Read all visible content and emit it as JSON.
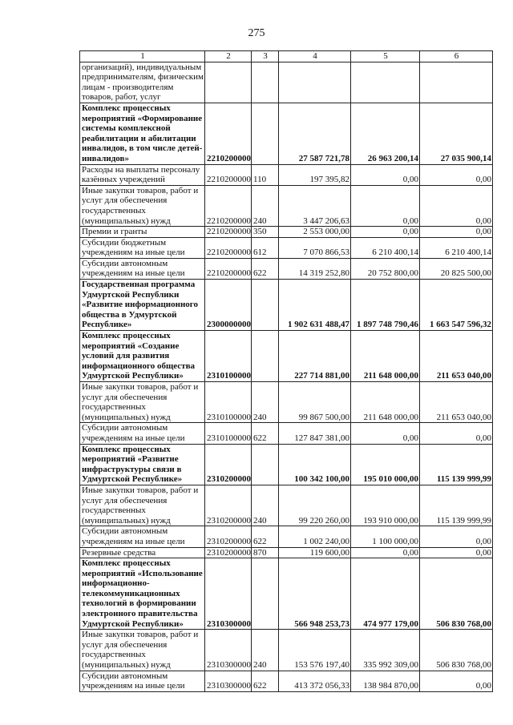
{
  "page_number": "275",
  "header": [
    "1",
    "2",
    "3",
    "4",
    "5",
    "6"
  ],
  "rows": [
    {
      "label": "организаций), индивидуальным\nпредпринимателям, физическим\nлицам - производителям\nтоваров, работ, услуг",
      "bold": false,
      "code": "",
      "type": "",
      "v4": "",
      "v5": "",
      "v6": ""
    },
    {
      "label": "Комплекс процессных\nмероприятий «Формирование\nсистемы комплексной\nреабилитации и абилитации\nинвалидов, в том числе детей-\nинвалидов»",
      "bold": true,
      "code": "2210200000",
      "type": "",
      "v4": "27 587 721,78",
      "v5": "26 963 200,14",
      "v6": "27 035 900,14"
    },
    {
      "label": "Расходы на выплаты персоналу\nказённых учреждений",
      "bold": false,
      "code": "2210200000",
      "type": "110",
      "v4": "197 395,82",
      "v5": "0,00",
      "v6": "0,00"
    },
    {
      "label": "Иные закупки товаров, работ и\nуслуг для обеспечения\nгосударственных\n(муниципальных) нужд",
      "bold": false,
      "code": "2210200000",
      "type": "240",
      "v4": "3 447 206,63",
      "v5": "0,00",
      "v6": "0,00"
    },
    {
      "label": "Премии и гранты",
      "bold": false,
      "code": "2210200000",
      "type": "350",
      "v4": "2 553 000,00",
      "v5": "0,00",
      "v6": "0,00"
    },
    {
      "label": "Субсидии бюджетным\nучреждениям на иные цели",
      "bold": false,
      "code": "2210200000",
      "type": "612",
      "v4": "7 070 866,53",
      "v5": "6 210 400,14",
      "v6": "6 210 400,14"
    },
    {
      "label": "Субсидии автономным\nучреждениям на иные цели",
      "bold": false,
      "code": "2210200000",
      "type": "622",
      "v4": "14 319 252,80",
      "v5": "20 752 800,00",
      "v6": "20 825 500,00"
    },
    {
      "label": "Государственная программа\nУдмуртской Республики\n«Развитие информационного\nобщества в Удмуртской\nРеспублике»",
      "bold": true,
      "code": "2300000000",
      "type": "",
      "v4": "1 902 631 488,47",
      "v5": "1 897 748 790,46",
      "v6": "1 663 547 596,32"
    },
    {
      "label": "Комплекс процессных\nмероприятий «Создание\nусловий для развития\nинформационного общества\nУдмуртской Республики»",
      "bold": true,
      "code": "2310100000",
      "type": "",
      "v4": "227 714 881,00",
      "v5": "211 648 000,00",
      "v6": "211 653 040,00"
    },
    {
      "label": "Иные закупки товаров, работ и\nуслуг для обеспечения\nгосударственных\n(муниципальных) нужд",
      "bold": false,
      "code": "2310100000",
      "type": "240",
      "v4": "99 867 500,00",
      "v5": "211 648 000,00",
      "v6": "211 653 040,00"
    },
    {
      "label": "Субсидии автономным\nучреждениям на иные цели",
      "bold": false,
      "code": "2310100000",
      "type": "622",
      "v4": "127 847 381,00",
      "v5": "0,00",
      "v6": "0,00"
    },
    {
      "label": "Комплекс процессных\nмероприятий «Развитие\nинфраструктуры связи в\nУдмуртской Республике»",
      "bold": true,
      "code": "2310200000",
      "type": "",
      "v4": "100 342 100,00",
      "v5": "195 010 000,00",
      "v6": "115 139 999,99"
    },
    {
      "label": "Иные закупки товаров, работ и\nуслуг для обеспечения\nгосударственных\n(муниципальных) нужд",
      "bold": false,
      "code": "2310200000",
      "type": "240",
      "v4": "99 220 260,00",
      "v5": "193 910 000,00",
      "v6": "115 139 999,99"
    },
    {
      "label": "Субсидии автономным\nучреждениям на иные цели",
      "bold": false,
      "code": "2310200000",
      "type": "622",
      "v4": "1 002 240,00",
      "v5": "1 100 000,00",
      "v6": "0,00"
    },
    {
      "label": "Резервные средства",
      "bold": false,
      "code": "2310200000",
      "type": "870",
      "v4": "119 600,00",
      "v5": "0,00",
      "v6": "0,00"
    },
    {
      "label": "Комплекс процессных\nмероприятий «Использование\nинформационно-\nтелекоммуникационных\nтехнологий в формировании\nэлектронного правительства\nУдмуртской Республики»",
      "bold": true,
      "code": "2310300000",
      "type": "",
      "v4": "566 948 253,73",
      "v5": "474 977 179,00",
      "v6": "506 830 768,00"
    },
    {
      "label": "Иные закупки товаров, работ и\nуслуг для обеспечения\nгосударственных\n(муниципальных) нужд",
      "bold": false,
      "code": "2310300000",
      "type": "240",
      "v4": "153 576 197,40",
      "v5": "335 992 309,00",
      "v6": "506 830 768,00"
    },
    {
      "label": "Субсидии автономным\nучреждениям на иные цели",
      "bold": false,
      "code": "2310300000",
      "type": "622",
      "v4": "413 372 056,33",
      "v5": "138 984 870,00",
      "v6": "0,00"
    }
  ]
}
